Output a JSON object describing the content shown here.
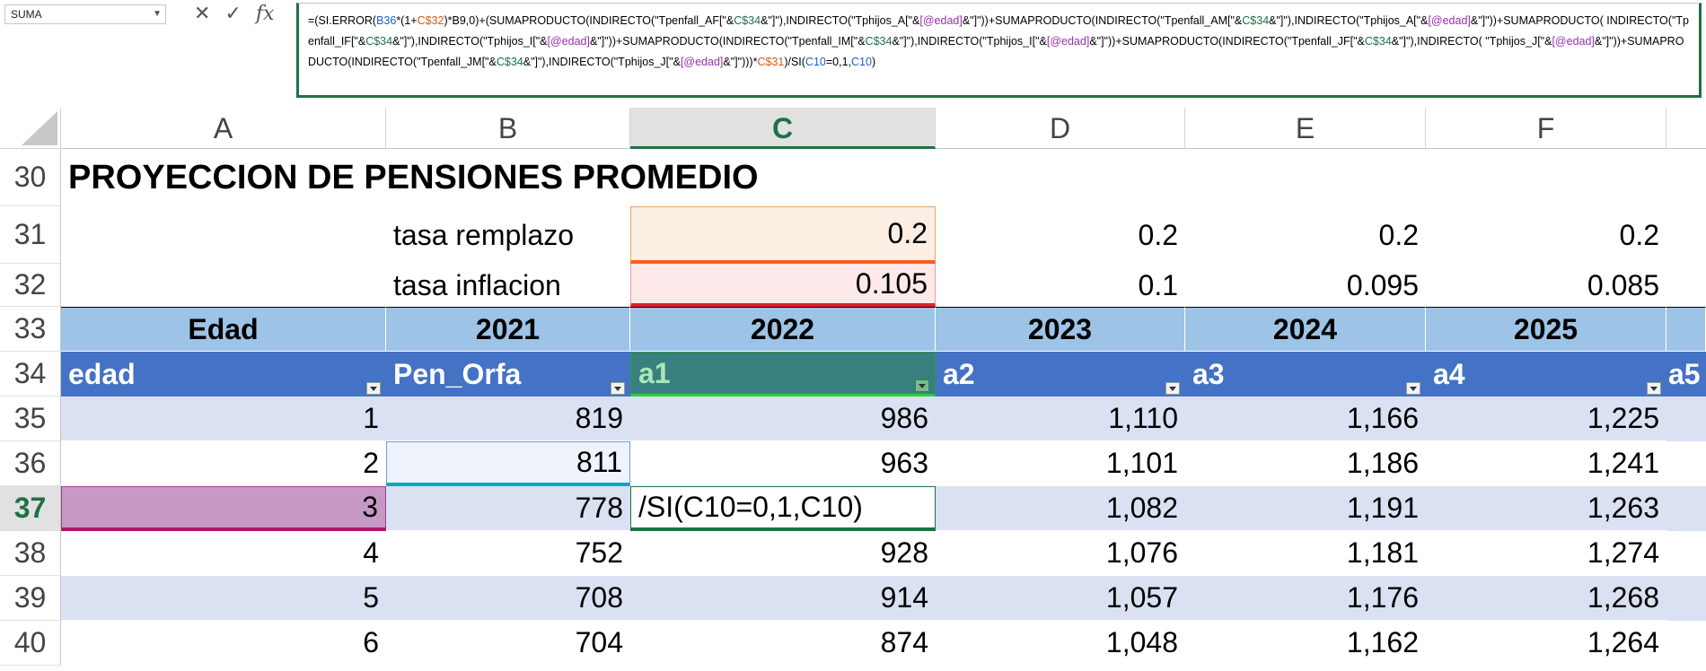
{
  "name_box": {
    "value": "SUMA"
  },
  "formula_bar": {
    "cancel_glyph": "✕",
    "enter_glyph": "✓",
    "fx_glyph": "fx",
    "parts": [
      {
        "t": "=(SI.ERROR(",
        "c": ""
      },
      {
        "t": "B36",
        "c": "blue"
      },
      {
        "t": "*(1+",
        "c": ""
      },
      {
        "t": "C$32",
        "c": "orange"
      },
      {
        "t": ")*B9,0)+(SUMAPRODUCTO(INDIRECTO(\"Tpenfall_AF[\"&",
        "c": ""
      },
      {
        "t": "C$34",
        "c": "green"
      },
      {
        "t": "&\"]\"),INDIRECTO(\"Tphijos_A[\"&",
        "c": ""
      },
      {
        "t": "[@edad]",
        "c": "purple"
      },
      {
        "t": "&\"]\"))+SUMAPRODUCTO(INDIRECTO(\"Tpenfall_AM[\"&",
        "c": ""
      },
      {
        "t": "C$34",
        "c": "green"
      },
      {
        "t": "&\"]\"),INDIRECTO(\"Tphijos_A[\"&",
        "c": ""
      },
      {
        "t": "[@edad]",
        "c": "purple"
      },
      {
        "t": "&\"]\"))+SUMAPRODUCTO( INDIRECTO(\"Tpenfall_IF[\"&",
        "c": ""
      },
      {
        "t": "C$34",
        "c": "green"
      },
      {
        "t": "&\"]\"),INDIRECTO(\"Tphijos_I[\"&",
        "c": ""
      },
      {
        "t": "[@edad]",
        "c": "purple"
      },
      {
        "t": "&\"]\"))+SUMAPRODUCTO(INDIRECTO(\"Tpenfall_IM[\"&",
        "c": ""
      },
      {
        "t": "C$34",
        "c": "green"
      },
      {
        "t": "&\"]\"),INDIRECTO(\"Tphijos_I[\"&",
        "c": ""
      },
      {
        "t": "[@edad]",
        "c": "purple"
      },
      {
        "t": "&\"]\"))+SUMAPRODUCTO(INDIRECTO(\"Tpenfall_JF[\"&",
        "c": ""
      },
      {
        "t": "C$34",
        "c": "green"
      },
      {
        "t": "&\"]\"),INDIRECTO( \"Tphijos_J[\"&",
        "c": ""
      },
      {
        "t": "[@edad]",
        "c": "purple"
      },
      {
        "t": "&\"]\"))+SUMAPRODUCTO(INDIRECTO(\"Tpenfall_JM[\"&",
        "c": ""
      },
      {
        "t": "C$34",
        "c": "green"
      },
      {
        "t": "&\"]\"),INDIRECTO(\"Tphijos_J[\"&",
        "c": ""
      },
      {
        "t": "[@edad]",
        "c": "purple"
      },
      {
        "t": "&\"]\")))*",
        "c": ""
      },
      {
        "t": "C$31",
        "c": "orange"
      },
      {
        "t": ")/SI(",
        "c": ""
      },
      {
        "t": "C10",
        "c": "blue"
      },
      {
        "t": "=0,1,",
        "c": ""
      },
      {
        "t": "C10",
        "c": "blue"
      },
      {
        "t": ")",
        "c": ""
      }
    ]
  },
  "columns": [
    "A",
    "B",
    "C",
    "D",
    "E",
    "F"
  ],
  "rows": [
    "30",
    "31",
    "32",
    "33",
    "34",
    "35",
    "36",
    "37",
    "38",
    "39",
    "40"
  ],
  "sheet": {
    "title": "PROYECCION DE PENSIONES PROMEDIO",
    "tasa_remplazo": {
      "label": "tasa remplazo",
      "values": [
        "0.2",
        "0.2",
        "0.2",
        "0.2"
      ]
    },
    "tasa_inflacion": {
      "label": "tasa inflacion",
      "values": [
        "0.105",
        "0.1",
        "0.095",
        "0.085"
      ]
    },
    "year_header": [
      "Edad",
      "2021",
      "2022",
      "2023",
      "2024",
      "2025"
    ],
    "table_header": [
      "edad",
      "Pen_Orfa",
      "a1",
      "a2",
      "a3",
      "a4",
      "a5"
    ],
    "table_rows": [
      [
        "1",
        "819",
        "986",
        "1,110",
        "1,166",
        "1,225"
      ],
      [
        "2",
        "811",
        "963",
        "1,101",
        "1,186",
        "1,241"
      ],
      [
        "3",
        "778",
        "/SI(C10=0,1,C10)",
        "1,082",
        "1,191",
        "1,263"
      ],
      [
        "4",
        "752",
        "928",
        "1,076",
        "1,181",
        "1,274"
      ],
      [
        "5",
        "708",
        "914",
        "1,057",
        "1,176",
        "1,268"
      ],
      [
        "6",
        "704",
        "874",
        "1,048",
        "1,162",
        "1,264"
      ]
    ]
  },
  "colors": {
    "header_light": "#9dc3e6",
    "header_dark": "#4472c4",
    "band": "#d9e1f2",
    "selection_green": "#1e7145"
  }
}
